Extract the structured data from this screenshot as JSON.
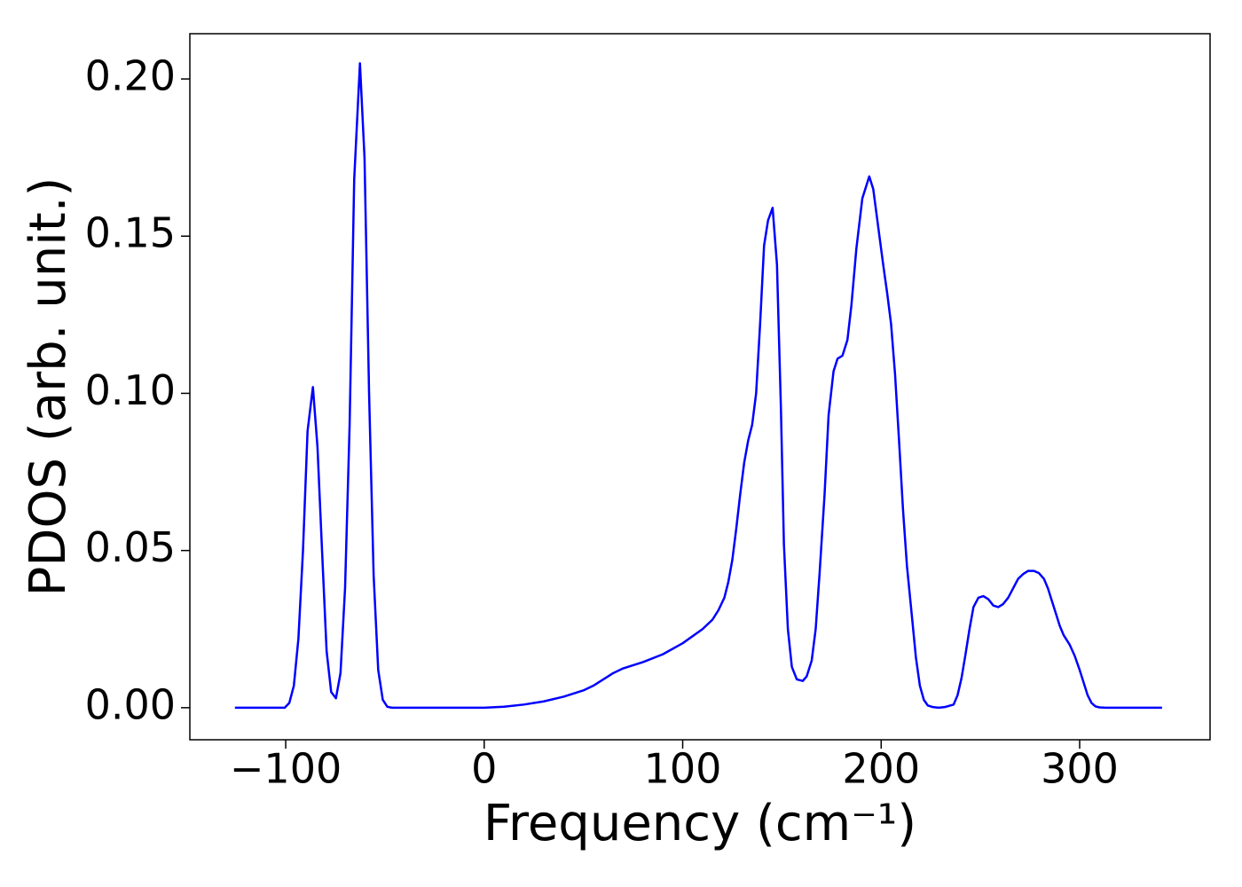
{
  "chart_data": {
    "type": "line",
    "x_label": "Frequency (cm⁻¹)",
    "y_label": "PDOS (arb. unit.)",
    "xlim": [
      -148.3,
      365.7
    ],
    "ylim": [
      -0.0102,
      0.2144
    ],
    "xticks": [
      {
        "value": -100,
        "label": "−100"
      },
      0,
      100,
      200,
      300
    ],
    "yticks": [
      {
        "value": 0,
        "label": "0.00"
      },
      {
        "value": 0.05,
        "label": "0.05"
      },
      {
        "value": 0.1,
        "label": "0.10"
      },
      {
        "value": 0.15,
        "label": "0.15"
      },
      {
        "value": 0.2,
        "label": "0.20"
      }
    ],
    "series": [
      {
        "color": "#0000ff",
        "x": [
          -125.6,
          -100.5,
          -98.2,
          -95.9,
          -93.6,
          -91.3,
          -89.0,
          -86.3,
          -84.0,
          -81.7,
          -79.4,
          -77.1,
          -74.7,
          -72.4,
          -70.1,
          -67.8,
          -65.5,
          -62.6,
          -60.3,
          -58.0,
          -55.7,
          -53.4,
          -51.1,
          -48.8,
          -46.5,
          0,
          10,
          20,
          30,
          40,
          50,
          55,
          60,
          65,
          70,
          80,
          90,
          100,
          110,
          115,
          118,
          121,
          123,
          125,
          127,
          129,
          131,
          133,
          135,
          137,
          139,
          141,
          143,
          145.3,
          147.5,
          149.5,
          151,
          153,
          155,
          157.5,
          160.5,
          162.5,
          165,
          167,
          169,
          171.5,
          173.5,
          176,
          178,
          180.5,
          183,
          185,
          187.5,
          190.5,
          194,
          196,
          198.5,
          201,
          203,
          205,
          207,
          209,
          211,
          213,
          215.5,
          217.5,
          219.5,
          221.5,
          223.5,
          226,
          229,
          232,
          236.5,
          238.5,
          240.5,
          242.5,
          244.5,
          246.5,
          249,
          251.5,
          254,
          256.5,
          259,
          261.5,
          264,
          266.5,
          269,
          271.5,
          274,
          277,
          279.5,
          282,
          284,
          286,
          288,
          290,
          292,
          295,
          297.5,
          300,
          302,
          304,
          306,
          308,
          310,
          313,
          341.5
        ],
        "values": [
          0,
          0,
          0.0015,
          0.007,
          0.022,
          0.05,
          0.088,
          0.102,
          0.083,
          0.05,
          0.018,
          0.005,
          0.003,
          0.011,
          0.038,
          0.09,
          0.168,
          0.205,
          0.175,
          0.1,
          0.042,
          0.012,
          0.0025,
          0.0003,
          0,
          0,
          0.0003,
          0.001,
          0.002,
          0.0035,
          0.0055,
          0.007,
          0.009,
          0.011,
          0.0125,
          0.0145,
          0.017,
          0.0205,
          0.025,
          0.028,
          0.031,
          0.035,
          0.04,
          0.047,
          0.057,
          0.068,
          0.078,
          0.085,
          0.09,
          0.1,
          0.122,
          0.147,
          0.155,
          0.159,
          0.141,
          0.095,
          0.052,
          0.025,
          0.013,
          0.009,
          0.0085,
          0.01,
          0.015,
          0.025,
          0.043,
          0.068,
          0.093,
          0.107,
          0.111,
          0.112,
          0.117,
          0.128,
          0.146,
          0.162,
          0.169,
          0.165,
          0.153,
          0.141,
          0.132,
          0.122,
          0.106,
          0.085,
          0.063,
          0.045,
          0.029,
          0.016,
          0.007,
          0.0025,
          0.0007,
          0.0002,
          0,
          0.0002,
          0.001,
          0.004,
          0.0095,
          0.017,
          0.025,
          0.032,
          0.035,
          0.0355,
          0.0345,
          0.0325,
          0.032,
          0.033,
          0.035,
          0.038,
          0.041,
          0.0425,
          0.0435,
          0.0435,
          0.0428,
          0.041,
          0.038,
          0.034,
          0.03,
          0.026,
          0.023,
          0.02,
          0.0165,
          0.012,
          0.008,
          0.004,
          0.0015,
          0.0004,
          0.0001,
          0,
          0
        ]
      }
    ]
  }
}
